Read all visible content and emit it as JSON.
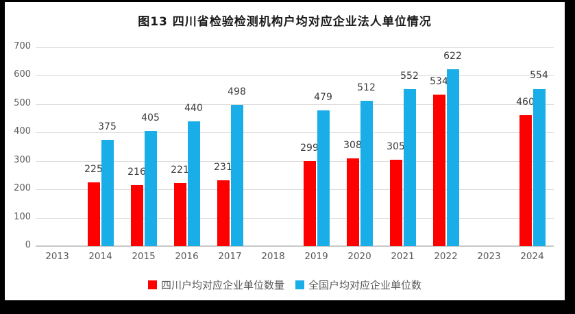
{
  "chart_data": {
    "type": "bar",
    "title": "图13 四川省检验检测机构户均对应企业法人单位情况",
    "categories": [
      "2013",
      "2014",
      "2015",
      "2016",
      "2017",
      "2018",
      "2019",
      "2020",
      "2021",
      "2022",
      "2023",
      "2024"
    ],
    "series": [
      {
        "name": "四川户均对应企业单位数量",
        "color": "#ff0000",
        "values": [
          null,
          225,
          216,
          221,
          231,
          null,
          299,
          308,
          305,
          534,
          null,
          460
        ]
      },
      {
        "name": "全国户均对应企业单位数",
        "color": "#1aaee8",
        "values": [
          null,
          375,
          405,
          440,
          498,
          null,
          479,
          512,
          552,
          622,
          null,
          554
        ]
      }
    ],
    "xlabel": "",
    "ylabel": "",
    "ylim": [
      0,
      700
    ],
    "ytick_step": 100,
    "grid": true,
    "grid_color": "#dcdcdc",
    "axis_line_color": "#c9c9c9",
    "legend_position": "bottom",
    "data_labels": true
  }
}
